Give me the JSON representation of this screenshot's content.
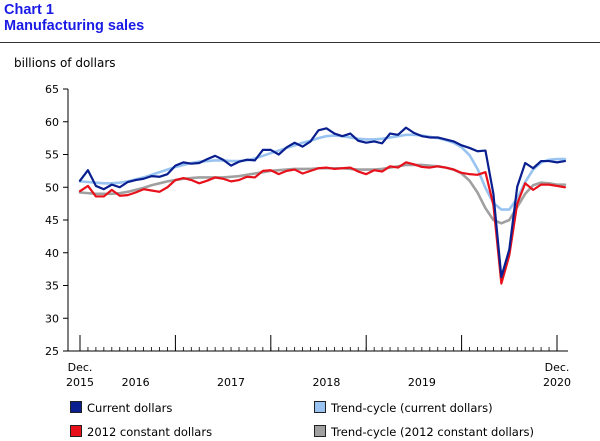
{
  "header": {
    "chart_number": "Chart 1",
    "chart_title": "Manufacturing sales"
  },
  "chart_data": {
    "type": "line",
    "title": "Manufacturing sales",
    "ylabel": "billions of dollars",
    "ylim": [
      25,
      65
    ],
    "yticks": [
      25,
      30,
      35,
      40,
      45,
      50,
      55,
      60,
      65
    ],
    "xlim": [
      "2015-12",
      "2020-12"
    ],
    "x_tick_labels": [
      {
        "month": "2015-12",
        "lines": [
          "Dec.",
          "2015"
        ]
      },
      {
        "month": "2016-07",
        "lines": [
          "",
          "2016"
        ]
      },
      {
        "month": "2017-07",
        "lines": [
          "",
          "2017"
        ]
      },
      {
        "month": "2018-07",
        "lines": [
          "",
          "2018"
        ]
      },
      {
        "month": "2019-07",
        "lines": [
          "",
          "2019"
        ]
      },
      {
        "month": "2020-12",
        "lines": [
          "Dec.",
          "2020"
        ]
      }
    ],
    "x_tick_marks_major": [
      "2015-12",
      "2016-12",
      "2017-12",
      "2018-12",
      "2019-12",
      "2020-12"
    ],
    "grid": false,
    "legend_position": "bottom",
    "series": [
      {
        "name": "Current dollars",
        "color": "#0a1f8f",
        "start": "2015-12",
        "values": [
          51.0,
          52.6,
          50.2,
          49.7,
          50.4,
          50.0,
          50.8,
          51.1,
          51.3,
          51.7,
          51.6,
          52.0,
          53.3,
          53.8,
          53.6,
          53.7,
          54.3,
          54.8,
          54.2,
          53.3,
          53.9,
          54.2,
          54.1,
          55.7,
          55.7,
          55.0,
          56.1,
          56.8,
          56.2,
          57.0,
          58.7,
          59.0,
          58.2,
          57.8,
          58.2,
          57.1,
          56.8,
          57.0,
          56.7,
          58.2,
          58.0,
          59.1,
          58.3,
          57.8,
          57.6,
          57.6,
          57.3,
          57.0,
          56.4,
          56.0,
          55.5,
          55.6,
          49.0,
          36.3,
          40.5,
          50.1,
          53.7,
          52.9,
          54.0,
          54.0,
          53.8,
          54.0
        ]
      },
      {
        "name": "Trend-cycle (current dollars)",
        "color": "#99c3f0",
        "start": "2015-12",
        "values": [
          50.9,
          50.8,
          50.7,
          50.6,
          50.6,
          50.7,
          50.9,
          51.2,
          51.5,
          51.9,
          52.3,
          52.7,
          53.1,
          53.4,
          53.7,
          53.9,
          54.0,
          54.1,
          54.1,
          54.0,
          54.0,
          54.1,
          54.4,
          54.8,
          55.2,
          55.6,
          56.0,
          56.4,
          56.8,
          57.1,
          57.5,
          57.8,
          57.9,
          57.8,
          57.6,
          57.4,
          57.3,
          57.3,
          57.4,
          57.6,
          57.8,
          58.0,
          58.0,
          57.9,
          57.7,
          57.5,
          57.2,
          56.8,
          56.1,
          54.9,
          52.8,
          49.9,
          47.6,
          46.6,
          46.6,
          48.3,
          50.8,
          52.7,
          53.8,
          54.2,
          54.3,
          54.3
        ]
      },
      {
        "name": "2012 constant dollars",
        "color": "#e8101a",
        "start": "2015-12",
        "values": [
          49.4,
          50.2,
          48.6,
          48.6,
          49.6,
          48.7,
          48.8,
          49.2,
          49.7,
          49.5,
          49.3,
          50.0,
          51.1,
          51.4,
          51.1,
          50.6,
          51.0,
          51.5,
          51.3,
          50.9,
          51.1,
          51.6,
          51.5,
          52.5,
          52.6,
          52.0,
          52.5,
          52.7,
          52.1,
          52.5,
          52.9,
          53.0,
          52.8,
          52.9,
          53.0,
          52.4,
          52.0,
          52.6,
          52.4,
          53.2,
          53.0,
          53.8,
          53.5,
          53.1,
          53.0,
          53.2,
          53.0,
          52.7,
          52.2,
          52.0,
          51.9,
          52.3,
          47.3,
          35.3,
          39.6,
          47.5,
          50.6,
          49.6,
          50.4,
          50.4,
          50.2,
          50.0
        ]
      },
      {
        "name": "Trend-cycle (2012 constant dollars)",
        "color": "#a0a0a0",
        "start": "2015-12",
        "values": [
          49.2,
          49.1,
          49.0,
          49.0,
          49.0,
          49.1,
          49.3,
          49.6,
          49.9,
          50.3,
          50.6,
          50.9,
          51.1,
          51.3,
          51.4,
          51.5,
          51.5,
          51.5,
          51.5,
          51.6,
          51.7,
          51.9,
          52.1,
          52.3,
          52.5,
          52.6,
          52.7,
          52.8,
          52.8,
          52.8,
          52.9,
          52.9,
          52.9,
          52.9,
          52.8,
          52.7,
          52.7,
          52.7,
          52.8,
          53.0,
          53.2,
          53.4,
          53.4,
          53.4,
          53.3,
          53.2,
          53.0,
          52.7,
          52.1,
          51.0,
          49.2,
          46.8,
          45.0,
          44.5,
          45.0,
          47.0,
          49.0,
          50.3,
          50.7,
          50.6,
          50.4,
          50.4
        ]
      }
    ]
  },
  "legend": {
    "items": [
      {
        "label": "Current dollars",
        "color": "#0a1f8f"
      },
      {
        "label": "Trend-cycle (current dollars)",
        "color": "#99c3f0"
      },
      {
        "label": "2012 constant dollars",
        "color": "#e8101a"
      },
      {
        "label": "Trend-cycle (2012 constant dollars)",
        "color": "#a0a0a0"
      }
    ]
  }
}
